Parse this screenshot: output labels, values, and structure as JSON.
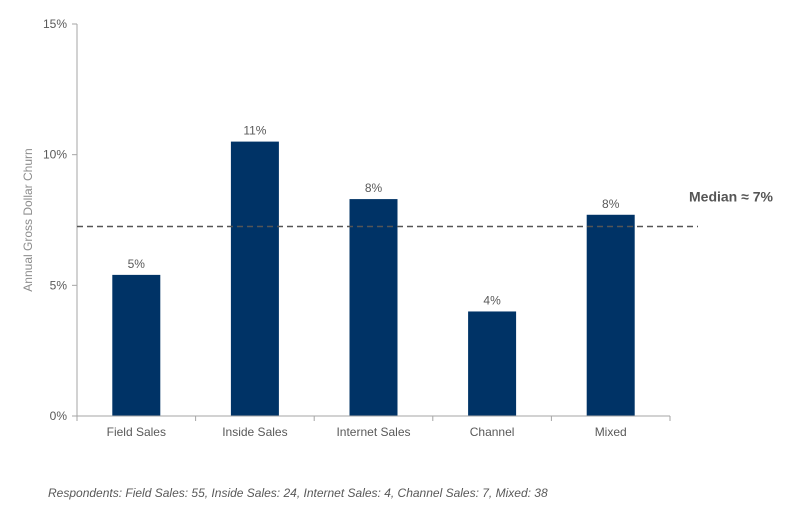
{
  "chart_data": {
    "type": "bar",
    "categories": [
      "Field Sales",
      "Inside Sales",
      "Internet Sales",
      "Channel",
      "Mixed"
    ],
    "values": [
      5.4,
      10.5,
      8.3,
      4.0,
      7.7
    ],
    "data_labels": [
      "5%",
      "11%",
      "8%",
      "4%",
      "8%"
    ],
    "ylabel": "Annual Gross Dollar Churn",
    "ylim": [
      0,
      15
    ],
    "yticks": [
      0,
      5,
      10,
      15
    ],
    "ytick_labels": [
      "0%",
      "5%",
      "10%",
      "15%"
    ],
    "bar_color": "#003366",
    "grid": false,
    "reference_line": {
      "value": 7.25,
      "label": "Median ≈ 7%",
      "style": "dashed",
      "color": "#555555"
    }
  },
  "footnote": "Respondents: Field Sales: 55, Inside Sales: 24, Internet Sales: 4, Channel Sales: 7, Mixed: 38"
}
